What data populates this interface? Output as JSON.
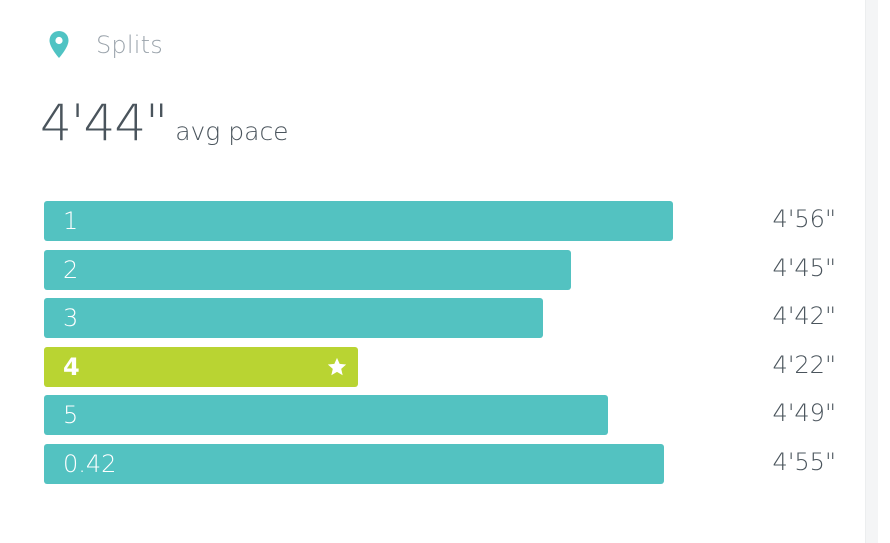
{
  "header": {
    "label": "Splits",
    "icon": "location-pin-icon",
    "icon_color": "#4fc3c3"
  },
  "summary": {
    "avg_value": "4'44\"",
    "avg_label": "avg pace"
  },
  "colors": {
    "bar": "#53c2c1",
    "best_bar": "#b9d432"
  },
  "splits": [
    {
      "label": "1",
      "time": "4'56\"",
      "seconds": 296,
      "best": false
    },
    {
      "label": "2",
      "time": "4'45\"",
      "seconds": 285,
      "best": false
    },
    {
      "label": "3",
      "time": "4'42\"",
      "seconds": 282,
      "best": false
    },
    {
      "label": "4",
      "time": "4'22\"",
      "seconds": 262,
      "best": true
    },
    {
      "label": "5",
      "time": "4'49\"",
      "seconds": 289,
      "best": false
    },
    {
      "label": "0.42",
      "time": "4'55\"",
      "seconds": 295,
      "best": false
    }
  ]
}
